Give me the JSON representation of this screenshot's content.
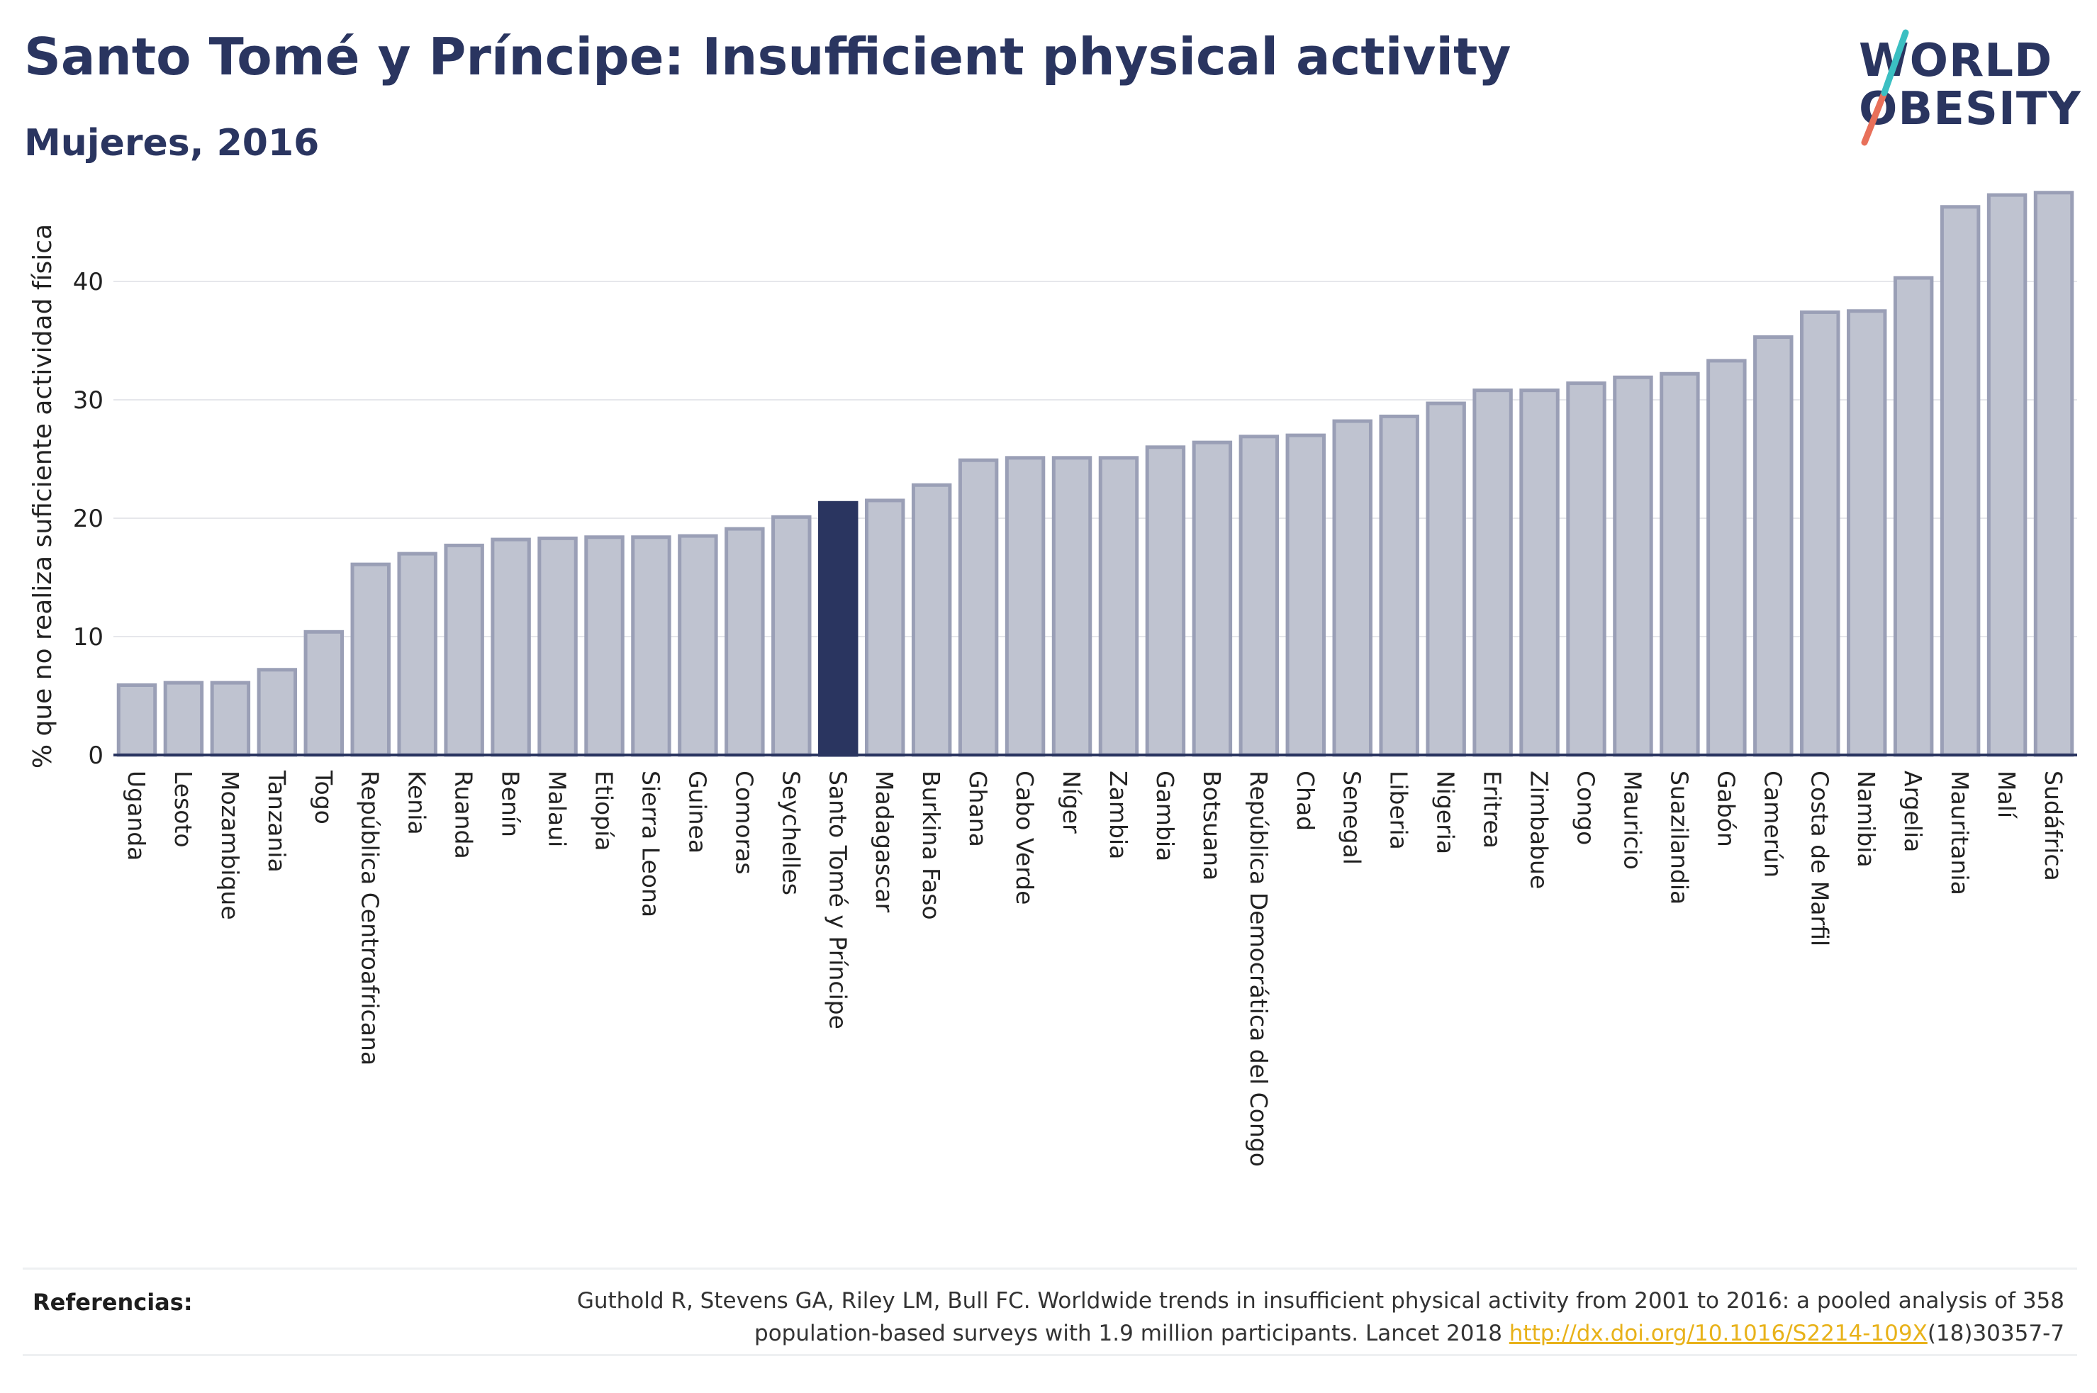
{
  "title": "Santo Tomé y Príncipe: Insufficient physical activity",
  "subtitle": "Mujeres, 2016",
  "logo": {
    "line1": "WORLD",
    "line2": "OBESITY"
  },
  "colors": {
    "bar": "#bfc3d0",
    "bar_border": "#9a9fb6",
    "highlight": "#2a3560",
    "title": "#2a3560",
    "link": "#e8b21a"
  },
  "chart_data": {
    "type": "bar",
    "ylabel": "% que no realiza suficiente actividad física",
    "xlabel": "",
    "ylim": [
      0,
      50
    ],
    "yticks": [
      0,
      10,
      20,
      30,
      40
    ],
    "grid": true,
    "highlight": "Santo Tomé y Príncipe",
    "categories": [
      "Uganda",
      "Lesoto",
      "Mozambique",
      "Tanzania",
      "Togo",
      "República Centroafricana",
      "Kenia",
      "Ruanda",
      "Benín",
      "Malaui",
      "Etiopía",
      "Sierra Leona",
      "Guinea",
      "Comoras",
      "Seychelles",
      "Santo Tomé y Príncipe",
      "Madagascar",
      "Burkina Faso",
      "Ghana",
      "Cabo Verde",
      "Níger",
      "Zambia",
      "Gambia",
      "Botsuana",
      "República Democrática del Congo",
      "Chad",
      "Senegal",
      "Liberia",
      "Nigeria",
      "Eritrea",
      "Zimbabue",
      "Congo",
      "Mauricio",
      "Suazilandia",
      "Gabón",
      "Camerún",
      "Costa de Marfil",
      "Namibia",
      "Argelia",
      "Mauritania",
      "Malí",
      "Sudáfrica"
    ],
    "values": [
      5.9,
      6.1,
      6.1,
      7.2,
      10.4,
      16.1,
      17.0,
      17.7,
      18.2,
      18.3,
      18.4,
      18.4,
      18.5,
      19.1,
      20.1,
      21.3,
      21.5,
      22.8,
      24.9,
      25.1,
      25.1,
      25.1,
      26.0,
      26.4,
      26.9,
      27.0,
      28.2,
      28.6,
      29.7,
      30.8,
      30.8,
      31.4,
      31.9,
      32.2,
      33.3,
      35.3,
      37.4,
      37.5,
      40.3,
      46.3,
      47.3,
      47.5
    ]
  },
  "references": {
    "label": "Referencias:",
    "line1": "Guthold R, Stevens GA, Riley LM, Bull FC. Worldwide trends in insufficient physical activity from 2001 to 2016: a pooled analysis of 358",
    "line2_before": "population-based surveys with 1.9 million participants. Lancet 2018 ",
    "link": "http://dx.doi.org/10.1016/S2214-109X",
    "line2_after": "(18)30357-7"
  }
}
